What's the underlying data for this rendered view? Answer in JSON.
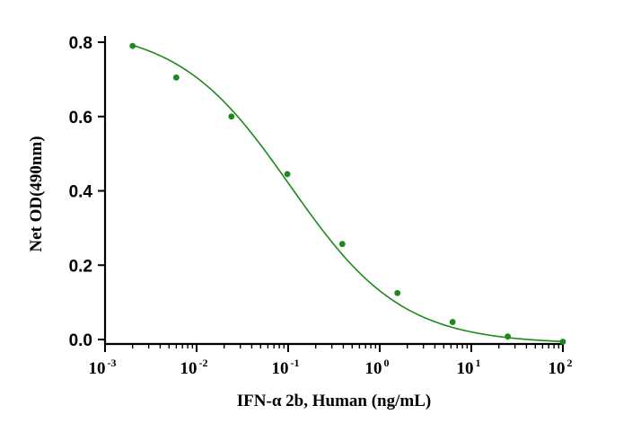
{
  "chart_data": {
    "type": "scatter",
    "title": "",
    "xlabel": "IFN-α 2b, Human (ng/mL)",
    "ylabel": "Net OD(490nm)",
    "x_scale": "log",
    "xlim": [
      0.001,
      100
    ],
    "ylim": [
      -0.02,
      0.8
    ],
    "x_ticks": [
      0.001,
      0.01,
      0.1,
      1,
      10,
      100
    ],
    "x_tick_labels": [
      {
        "base": "10",
        "exp": "-3"
      },
      {
        "base": "10",
        "exp": "-2"
      },
      {
        "base": "10",
        "exp": "-1"
      },
      {
        "base": "10",
        "exp": "0"
      },
      {
        "base": "10",
        "exp": "1"
      },
      {
        "base": "10",
        "exp": "2"
      }
    ],
    "y_ticks": [
      0.0,
      0.2,
      0.4,
      0.6,
      0.8
    ],
    "y_tick_labels": [
      "0.0",
      "0.2",
      "0.4",
      "0.6",
      "0.8"
    ],
    "grid": false,
    "color": "#1a8a1a",
    "series": [
      {
        "type": "scatter",
        "x": [
          0.002,
          0.006,
          0.024,
          0.098,
          0.39,
          1.56,
          6.25,
          25,
          100
        ],
        "y": [
          0.79,
          0.705,
          0.6,
          0.445,
          0.257,
          0.125,
          0.047,
          0.008,
          -0.006
        ]
      },
      {
        "type": "line",
        "fit": "4PL",
        "params": {
          "top": 0.84,
          "bottom": -0.012,
          "ec50": 0.105,
          "hill": -0.71
        }
      }
    ]
  }
}
